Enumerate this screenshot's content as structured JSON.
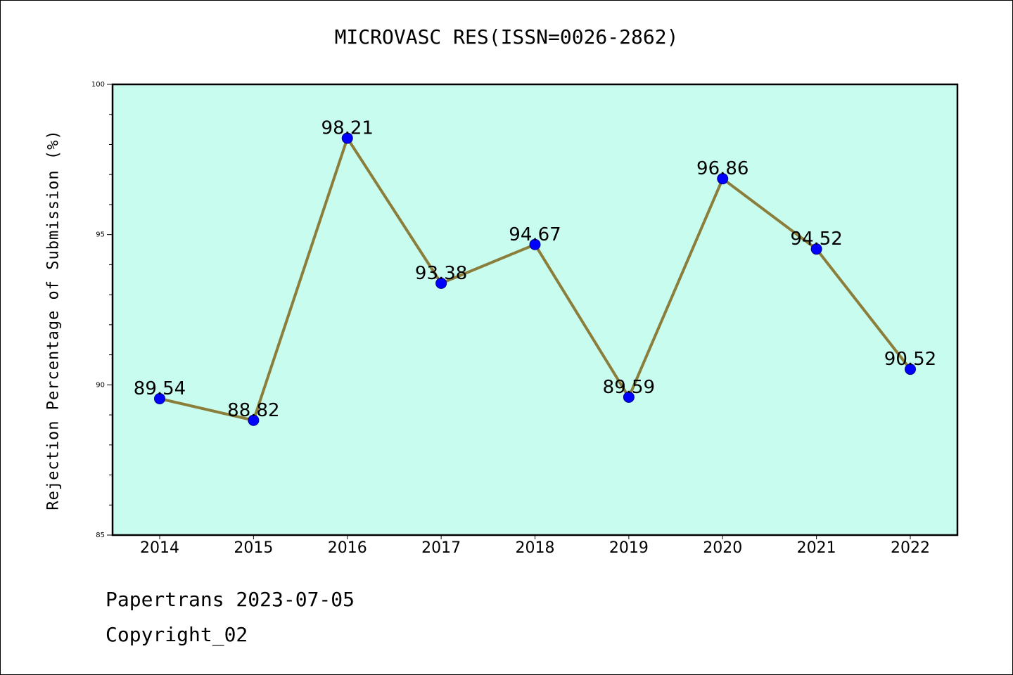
{
  "chart_data": {
    "type": "line",
    "title": "MICROVASC RES(ISSN=0026-2862)",
    "xlabel": "",
    "ylabel": "Rejection Percentage of Submission (%)",
    "categories": [
      "2014",
      "2015",
      "2016",
      "2017",
      "2018",
      "2019",
      "2020",
      "2021",
      "2022"
    ],
    "series": [
      {
        "values": [
          89.54,
          88.82,
          98.21,
          93.38,
          94.67,
          89.59,
          96.86,
          94.52,
          90.52
        ]
      }
    ],
    "data_labels": [
      "89.54",
      "88.82",
      "98.21",
      "93.38",
      "94.67",
      "89.59",
      "96.86",
      "94.52",
      "90.52"
    ],
    "ylim": [
      85,
      100
    ],
    "yticks": [
      "85",
      "90",
      "95",
      "100"
    ],
    "grid": false,
    "legend": "none",
    "colors": {
      "plot_background": "#c8fcee",
      "line": "#8b7d3a",
      "marker": "#0000ff"
    }
  },
  "footer": {
    "line1": "Papertrans 2023-07-05",
    "line2": "Copyright_02"
  }
}
